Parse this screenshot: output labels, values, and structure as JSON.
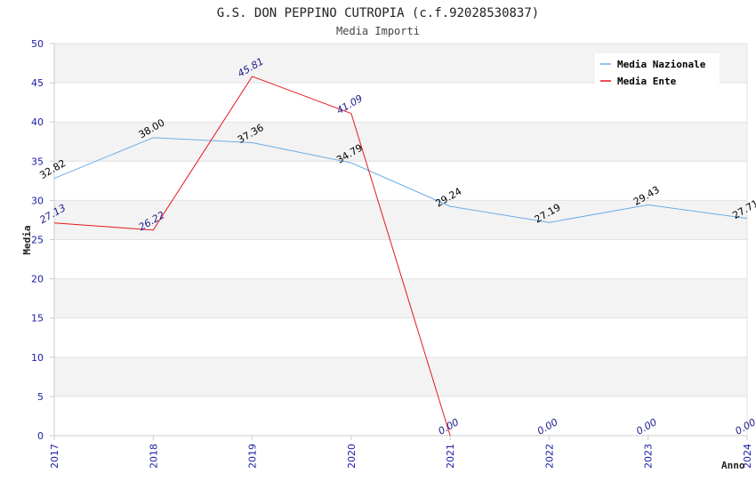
{
  "chart_data": {
    "type": "line",
    "title": "G.S. DON PEPPINO CUTROPIA (c.f.92028530837)",
    "subtitle": "Media Importi",
    "xlabel": "Anno",
    "ylabel": "Media",
    "categories": [
      "2017",
      "2018",
      "2019",
      "2020",
      "2021",
      "2022",
      "2023",
      "2024"
    ],
    "ylim": [
      0,
      50
    ],
    "yticks": [
      0,
      5,
      10,
      15,
      20,
      25,
      30,
      35,
      40,
      45,
      50
    ],
    "grid": true,
    "legend_position": "top-right",
    "series": [
      {
        "name": "Media Nazionale",
        "color": "#6aaee8",
        "label_color": "#000000",
        "values": [
          32.82,
          38.0,
          37.36,
          34.79,
          29.24,
          27.19,
          29.43,
          27.71
        ],
        "labels": [
          "32.82",
          "38.00",
          "37.36",
          "34.79",
          "29.24",
          "27.19",
          "29.43",
          "27.71"
        ]
      },
      {
        "name": "Media Ente",
        "color": "#e8161b",
        "label_color": "#1a1a8c",
        "values": [
          27.13,
          26.22,
          45.81,
          41.09,
          0.0,
          null,
          null,
          null
        ],
        "labels": [
          "27.13",
          "26.22",
          "45.81",
          "41.09",
          "0.00",
          "0.00",
          "0.00",
          "0.00"
        ],
        "label_values": [
          27.13,
          26.22,
          45.81,
          41.09,
          0.0,
          0.0,
          0.0,
          0.0
        ]
      }
    ]
  }
}
